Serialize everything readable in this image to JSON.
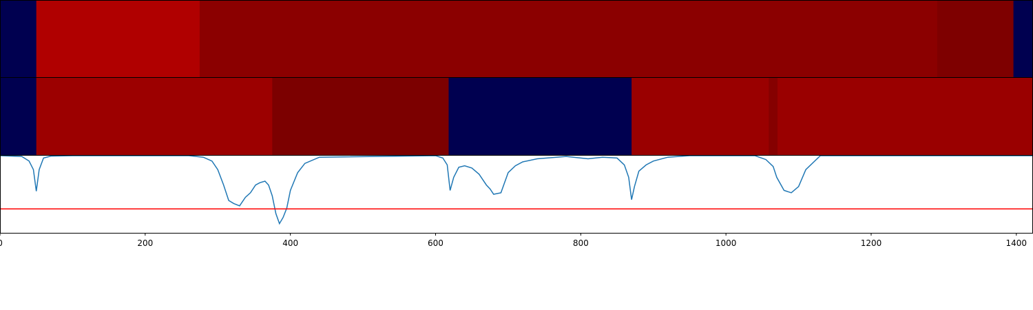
{
  "chart_data": [
    {
      "type": "heatmap",
      "name": "segment-strip-1",
      "x_range": [
        0,
        1422
      ],
      "colors": {
        "low": "#000050",
        "high": "#b10000"
      },
      "segments": [
        {
          "start": 0,
          "end": 50,
          "color": "#000050"
        },
        {
          "start": 50,
          "end": 275,
          "color": "#b00000"
        },
        {
          "start": 275,
          "end": 1291,
          "color": "#8b0000"
        },
        {
          "start": 1291,
          "end": 1396,
          "color": "#7e0000"
        },
        {
          "start": 1396,
          "end": 1422,
          "color": "#000050"
        }
      ]
    },
    {
      "type": "heatmap",
      "name": "segment-strip-2",
      "x_range": [
        0,
        1422
      ],
      "segments": [
        {
          "start": 0,
          "end": 50,
          "color": "#000050"
        },
        {
          "start": 50,
          "end": 375,
          "color": "#9c0000"
        },
        {
          "start": 375,
          "end": 618,
          "color": "#7c0000"
        },
        {
          "start": 618,
          "end": 870,
          "color": "#000050"
        },
        {
          "start": 870,
          "end": 1059,
          "color": "#9a0000"
        },
        {
          "start": 1059,
          "end": 1071,
          "color": "#850000"
        },
        {
          "start": 1071,
          "end": 1422,
          "color": "#9a0000"
        }
      ]
    },
    {
      "type": "line",
      "name": "signal-line",
      "xlim": [
        0,
        1422
      ],
      "ylim": [
        0,
        1
      ],
      "line_color": "#1f77b4",
      "threshold": {
        "value": 0.31,
        "color": "#ff0000"
      },
      "x": [
        0,
        30,
        40,
        46,
        50,
        54,
        60,
        70,
        100,
        260,
        280,
        292,
        300,
        308,
        315,
        322,
        330,
        338,
        345,
        352,
        358,
        365,
        370,
        375,
        380,
        385,
        390,
        395,
        400,
        410,
        420,
        440,
        600,
        610,
        616,
        620,
        625,
        632,
        640,
        650,
        660,
        670,
        675,
        680,
        690,
        700,
        710,
        720,
        740,
        780,
        810,
        830,
        850,
        860,
        866,
        870,
        874,
        880,
        890,
        900,
        920,
        950,
        1040,
        1055,
        1065,
        1070,
        1080,
        1090,
        1100,
        1110,
        1130,
        1422
      ],
      "y": [
        1.0,
        0.99,
        0.93,
        0.82,
        0.54,
        0.82,
        0.97,
        0.995,
        1.0,
        1.0,
        0.98,
        0.93,
        0.82,
        0.62,
        0.42,
        0.38,
        0.35,
        0.46,
        0.52,
        0.62,
        0.65,
        0.67,
        0.62,
        0.48,
        0.25,
        0.12,
        0.2,
        0.32,
        0.55,
        0.78,
        0.9,
        0.98,
        1.0,
        0.97,
        0.88,
        0.55,
        0.72,
        0.85,
        0.87,
        0.84,
        0.76,
        0.62,
        0.57,
        0.5,
        0.52,
        0.78,
        0.87,
        0.92,
        0.96,
        0.99,
        0.96,
        0.98,
        0.97,
        0.88,
        0.72,
        0.43,
        0.6,
        0.8,
        0.88,
        0.93,
        0.98,
        1.0,
        1.0,
        0.95,
        0.86,
        0.72,
        0.55,
        0.52,
        0.6,
        0.82,
        1.0,
        1.0
      ]
    }
  ],
  "x_axis": {
    "ticks": [
      {
        "value": 0,
        "label": "0"
      },
      {
        "value": 200,
        "label": "200"
      },
      {
        "value": 400,
        "label": "400"
      },
      {
        "value": 600,
        "label": "600"
      },
      {
        "value": 800,
        "label": "800"
      },
      {
        "value": 1000,
        "label": "1000"
      },
      {
        "value": 1200,
        "label": "1200"
      },
      {
        "value": 1400,
        "label": "1400"
      }
    ]
  }
}
